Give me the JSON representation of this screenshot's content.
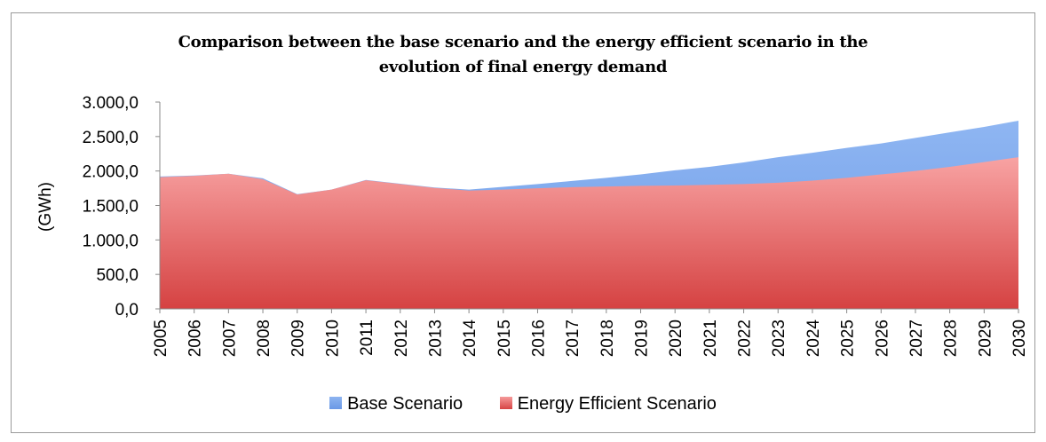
{
  "chart_data": {
    "type": "area",
    "title_lines": [
      "Comparison between the base scenario and the energy efficient scenario in the",
      "evolution of final energy demand"
    ],
    "xlabel": "",
    "ylabel": "(GWh)",
    "ylim": [
      0,
      3000
    ],
    "yticks": [
      "0,0",
      "500,0",
      "1.000,0",
      "1.500,0",
      "2.000,0",
      "2.500,0",
      "3.000,0"
    ],
    "ytick_values": [
      0,
      500,
      1000,
      1500,
      2000,
      2500,
      3000
    ],
    "categories": [
      "2005",
      "2006",
      "2007",
      "2008",
      "2009",
      "2010",
      "2011",
      "2012",
      "2013",
      "2014",
      "2015",
      "2016",
      "2017",
      "2018",
      "2019",
      "2020",
      "2021",
      "2022",
      "2023",
      "2024",
      "2025",
      "2026",
      "2027",
      "2028",
      "2029",
      "2030"
    ],
    "series": [
      {
        "name": "Base Scenario",
        "color": "#7aa6ee",
        "values": [
          1920,
          1935,
          1960,
          1895,
          1665,
          1730,
          1870,
          1815,
          1760,
          1730,
          1770,
          1810,
          1855,
          1900,
          1950,
          2010,
          2060,
          2125,
          2200,
          2265,
          2335,
          2400,
          2480,
          2560,
          2640,
          2730
        ]
      },
      {
        "name": "Energy Efficient Scenario",
        "color": "#e86464",
        "values": [
          1910,
          1930,
          1960,
          1880,
          1660,
          1730,
          1865,
          1810,
          1755,
          1715,
          1730,
          1750,
          1765,
          1775,
          1785,
          1790,
          1800,
          1810,
          1830,
          1860,
          1900,
          1950,
          2000,
          2060,
          2130,
          2200
        ]
      }
    ],
    "grid": false,
    "legend_position": "bottom"
  }
}
